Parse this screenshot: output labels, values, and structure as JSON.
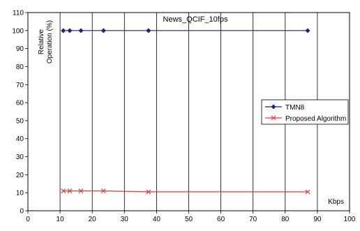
{
  "chart_data": {
    "type": "line",
    "title": "News_QCIF_10fps",
    "ylabel_line1": "Relative",
    "ylabel_line2": "Operation (%)",
    "xlabel": "Kbps",
    "xlim": [
      0,
      100
    ],
    "ylim": [
      0,
      110
    ],
    "xticks": [
      0,
      10,
      20,
      30,
      40,
      50,
      60,
      70,
      80,
      90,
      100
    ],
    "yticks": [
      0,
      10,
      20,
      30,
      40,
      50,
      60,
      70,
      80,
      90,
      100,
      110
    ],
    "grid": "vertical",
    "legend_position": "right",
    "series": [
      {
        "name": "TMN8",
        "color": "#1a237e",
        "marker": "diamond",
        "x": [
          11,
          13,
          16.5,
          23.5,
          37.5,
          87
        ],
        "y": [
          100,
          100,
          100,
          100,
          100,
          100
        ]
      },
      {
        "name": "Proposed Algorithm",
        "color": "#e53935",
        "marker": "x",
        "x": [
          11,
          13,
          16.5,
          23.5,
          37.5,
          87
        ],
        "y": [
          11,
          11,
          11,
          11,
          10.5,
          10.5
        ]
      }
    ]
  }
}
